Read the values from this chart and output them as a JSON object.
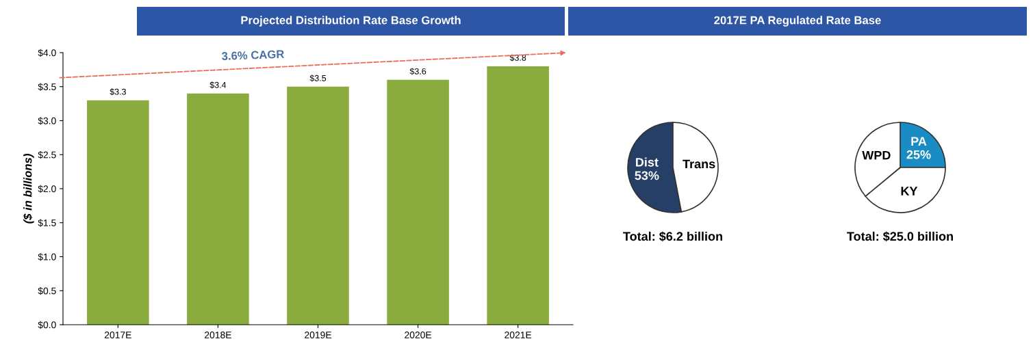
{
  "chart_data": [
    {
      "type": "bar",
      "title": "Projected Distribution Rate Base Growth",
      "ylabel": "($ in billions)",
      "categories": [
        "2017E",
        "2018E",
        "2019E",
        "2020E",
        "2021E"
      ],
      "values": [
        3.3,
        3.4,
        3.5,
        3.6,
        3.8
      ],
      "value_labels": [
        "$3.3",
        "$3.4",
        "$3.5",
        "$3.6",
        "$3.8"
      ],
      "color": "#8aab3e",
      "ylim": [
        0,
        4
      ],
      "yticks": [
        {
          "value": 0,
          "label": "$0.0"
        },
        {
          "value": 0.5,
          "label": "$0.5"
        },
        {
          "value": 1,
          "label": "$1.0"
        },
        {
          "value": 1.5,
          "label": "$1.5"
        },
        {
          "value": 2,
          "label": "$2.0"
        },
        {
          "value": 2.5,
          "label": "$2.5"
        },
        {
          "value": 3,
          "label": "$3.0"
        },
        {
          "value": 3.5,
          "label": "$3.5"
        },
        {
          "value": 4,
          "label": "$4.0"
        }
      ],
      "annotations": [
        "3.6% CAGR"
      ],
      "grid": false
    },
    {
      "type": "pie",
      "title": "2017E PA Regulated Rate Base",
      "categories": [
        "Dist",
        "Trans"
      ],
      "values": [
        53,
        47
      ],
      "value_labels": [
        "53%",
        null
      ],
      "colors": [
        "#263f66",
        "#ffffff"
      ],
      "annotations": [
        "Total: $6.2 billion"
      ]
    },
    {
      "type": "pie",
      "categories": [
        "PA",
        "KY",
        "WPD"
      ],
      "values": [
        25,
        39,
        36
      ],
      "value_labels": [
        "25%",
        null,
        null
      ],
      "colors": [
        "#1a8cc4",
        "#ffffff",
        "#ffffff"
      ],
      "annotations": [
        "Total: $25.0 billion"
      ]
    }
  ]
}
